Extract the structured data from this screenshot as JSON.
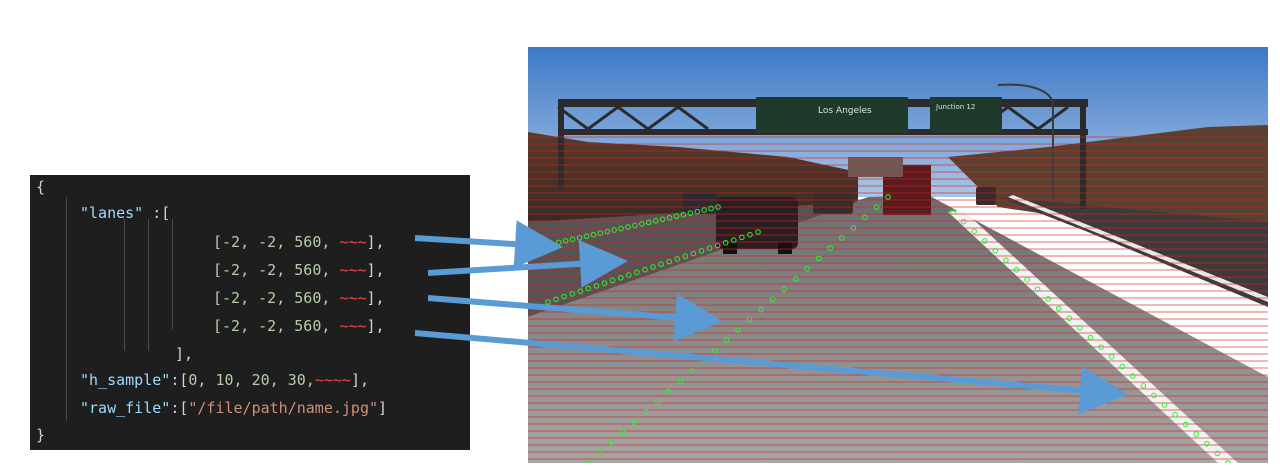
{
  "code": {
    "open_brace": "{",
    "lanes_key": "\"lanes\"",
    "lanes_sep": " :[",
    "lane_rows": [
      {
        "prefix": "[-2, -2, 560, ",
        "squiggle": "~~~",
        "suffix": "],"
      },
      {
        "prefix": "[-2, -2, 560, ",
        "squiggle": "~~~",
        "suffix": "],"
      },
      {
        "prefix": "[-2, -2, 560, ",
        "squiggle": "~~~",
        "suffix": "],"
      },
      {
        "prefix": "[-2, -2, 560, ",
        "squiggle": "~~~",
        "suffix": "],"
      }
    ],
    "lanes_close": "],",
    "h_sample_key": "\"h_sample\"",
    "h_sample_sep": ":[",
    "h_sample_values": "0, 10, 20, 30,",
    "h_sample_squiggle": "~~~~",
    "h_sample_close": "],",
    "raw_file_key": "\"raw_file\"",
    "raw_file_sep": ":[",
    "raw_file_value": "\"/file/path/name.jpg\"",
    "raw_file_close": "]",
    "close_brace": "}"
  },
  "photo": {
    "sign_left": "Los Angeles",
    "sign_right": "Junction 12"
  },
  "colors": {
    "code_bg": "#1e1e1e",
    "arrow": "#5b9bd5",
    "sample_line": "#d42020",
    "lane_point": "#33ee33"
  }
}
